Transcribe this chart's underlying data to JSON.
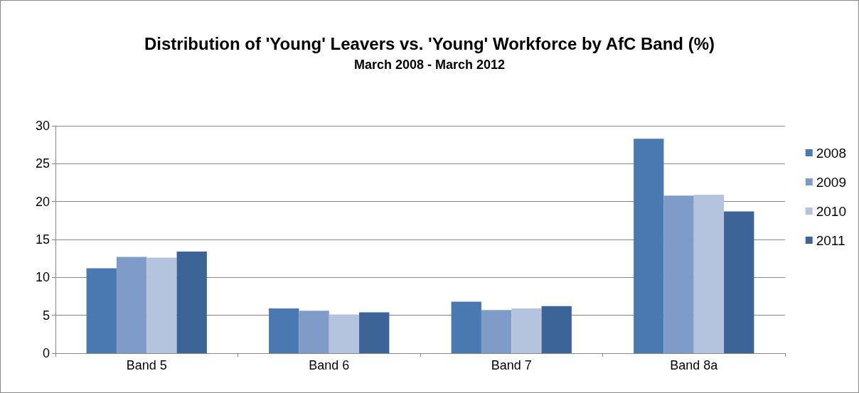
{
  "chart_data": {
    "type": "bar",
    "title": "Distribution of 'Young' Leavers vs. 'Young' Workforce by AfC Band (%)",
    "subtitle": "March 2008 - March 2012",
    "categories": [
      "Band 5",
      "Band 6",
      "Band 7",
      "Band 8a"
    ],
    "series": [
      {
        "name": "2008",
        "color": "#4a78b0",
        "values": [
          11.2,
          5.9,
          6.8,
          28.3
        ]
      },
      {
        "name": "2009",
        "color": "#7f9cc8",
        "values": [
          12.7,
          5.6,
          5.7,
          20.8
        ]
      },
      {
        "name": "2010",
        "color": "#b4c3de",
        "values": [
          12.6,
          5.1,
          5.9,
          20.9
        ]
      },
      {
        "name": "2011",
        "color": "#3c6496",
        "values": [
          13.4,
          5.4,
          6.2,
          18.7
        ]
      }
    ],
    "ylim": [
      0,
      30
    ],
    "yticks": [
      0,
      5,
      10,
      15,
      20,
      25,
      30
    ],
    "grid": "y",
    "legend": "right"
  }
}
